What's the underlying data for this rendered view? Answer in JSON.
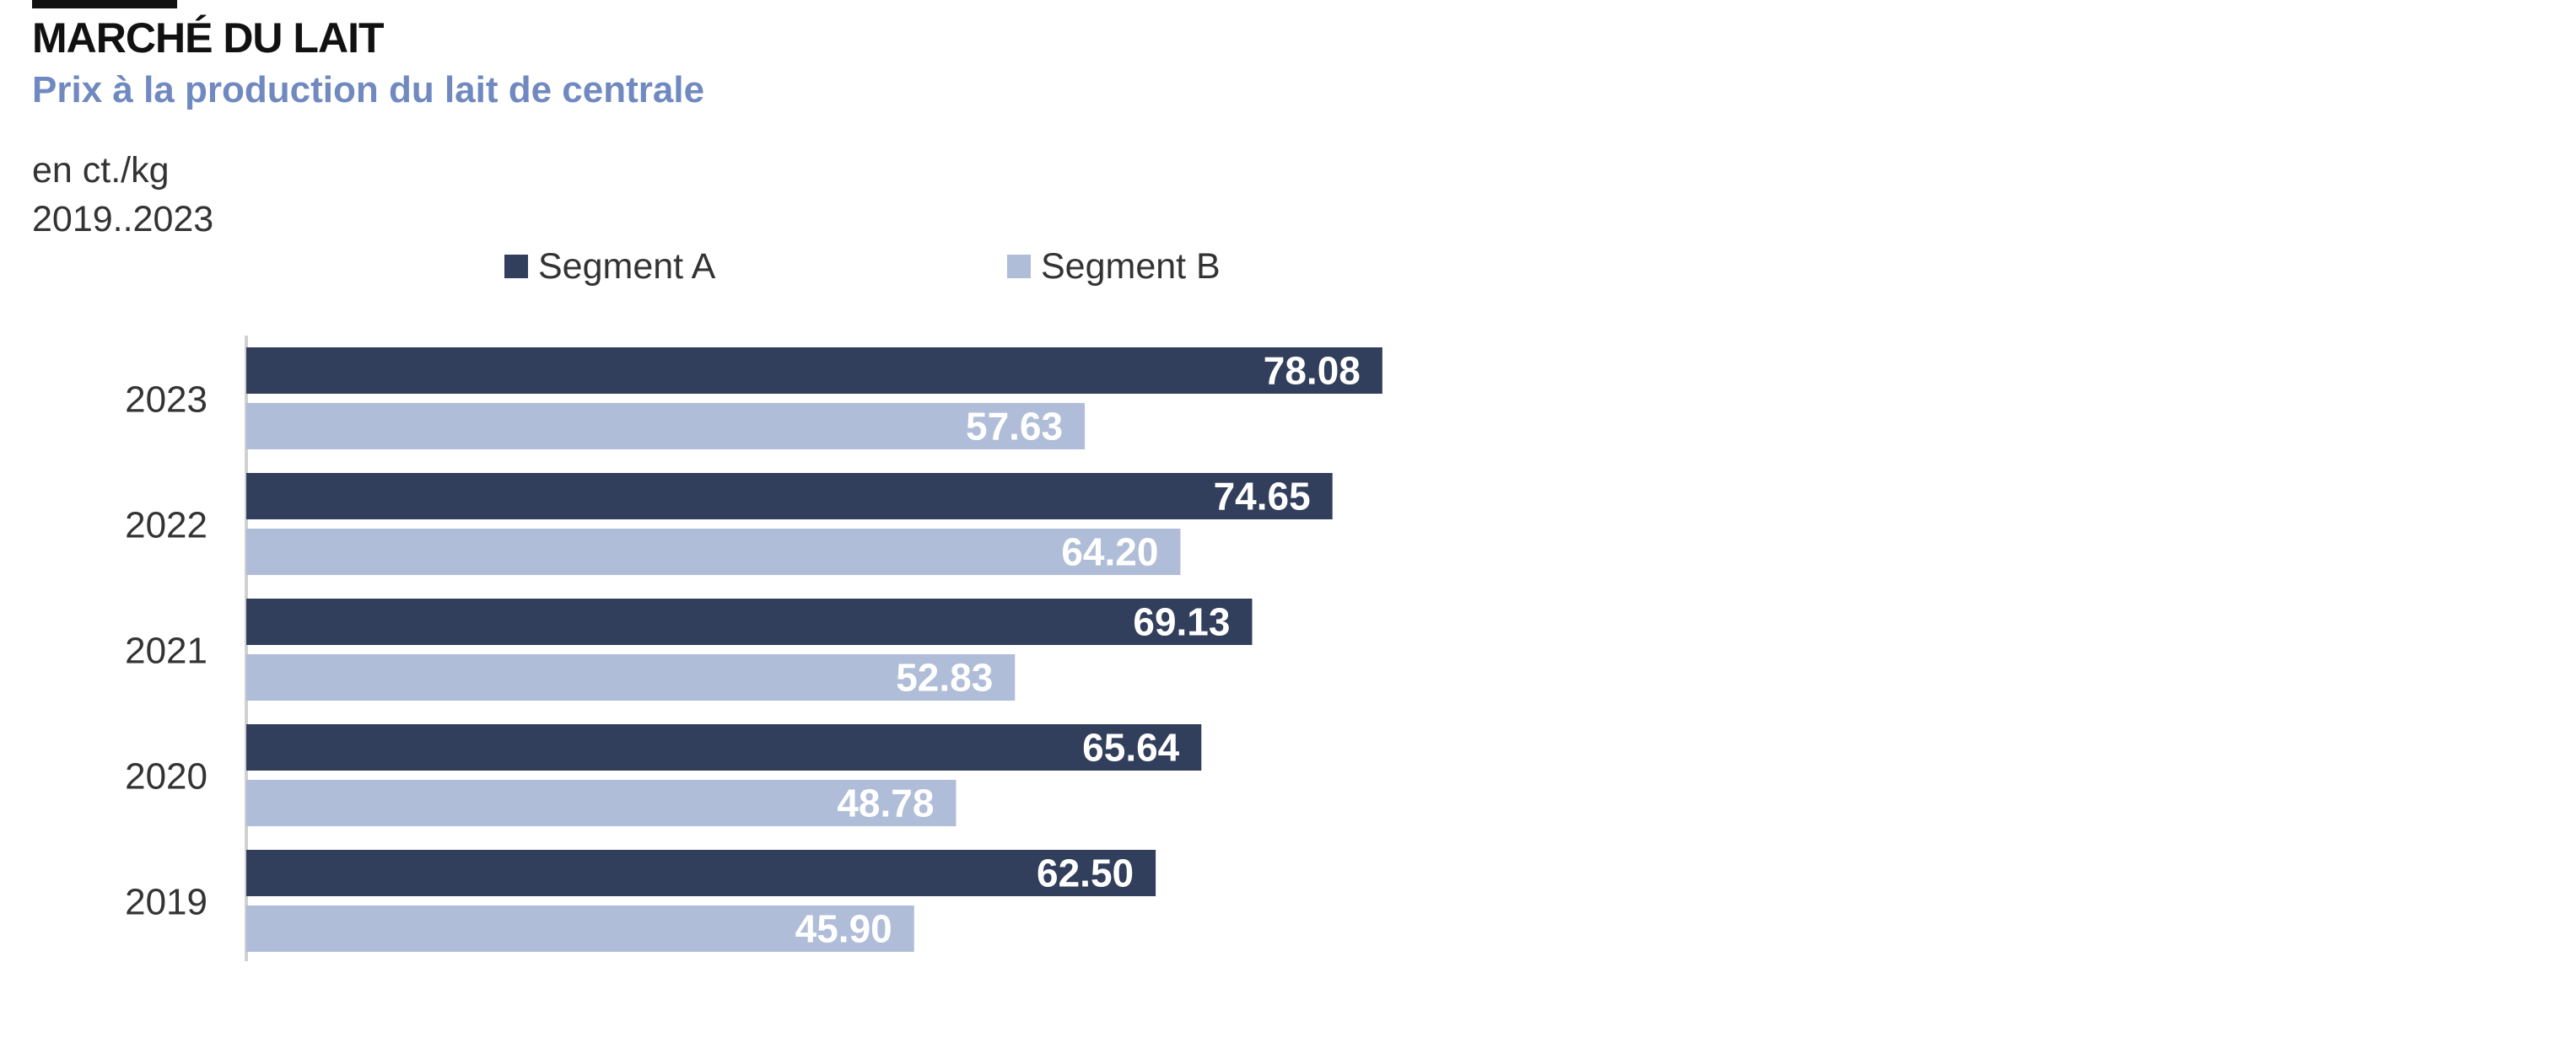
{
  "header": {
    "title": "MARCHÉ DU LAIT",
    "subtitle": "Prix à la production du lait de centrale",
    "unit": "en ct./kg",
    "range": "2019..2023"
  },
  "colors": {
    "accent": "#111111",
    "subtitle": "#7089c0",
    "segment_a": "#323f5c",
    "segment_b": "#b0bdd8",
    "axis": "#d0d0d0"
  },
  "chart_data": {
    "type": "bar",
    "orientation": "horizontal",
    "categories": [
      "2023",
      "2022",
      "2021",
      "2020",
      "2019"
    ],
    "series": [
      {
        "name": "Segment A",
        "values": [
          78.08,
          74.65,
          69.13,
          65.64,
          62.5
        ],
        "labels": [
          "78.08",
          "74.65",
          "69.13",
          "65.64",
          "62.50"
        ]
      },
      {
        "name": "Segment B",
        "values": [
          57.63,
          64.2,
          52.83,
          48.78,
          45.9
        ],
        "labels": [
          "57.63",
          "64.20",
          "52.83",
          "48.78",
          "45.90"
        ]
      }
    ],
    "xlim": [
      0,
      100
    ],
    "grid": false,
    "legend": "top"
  }
}
